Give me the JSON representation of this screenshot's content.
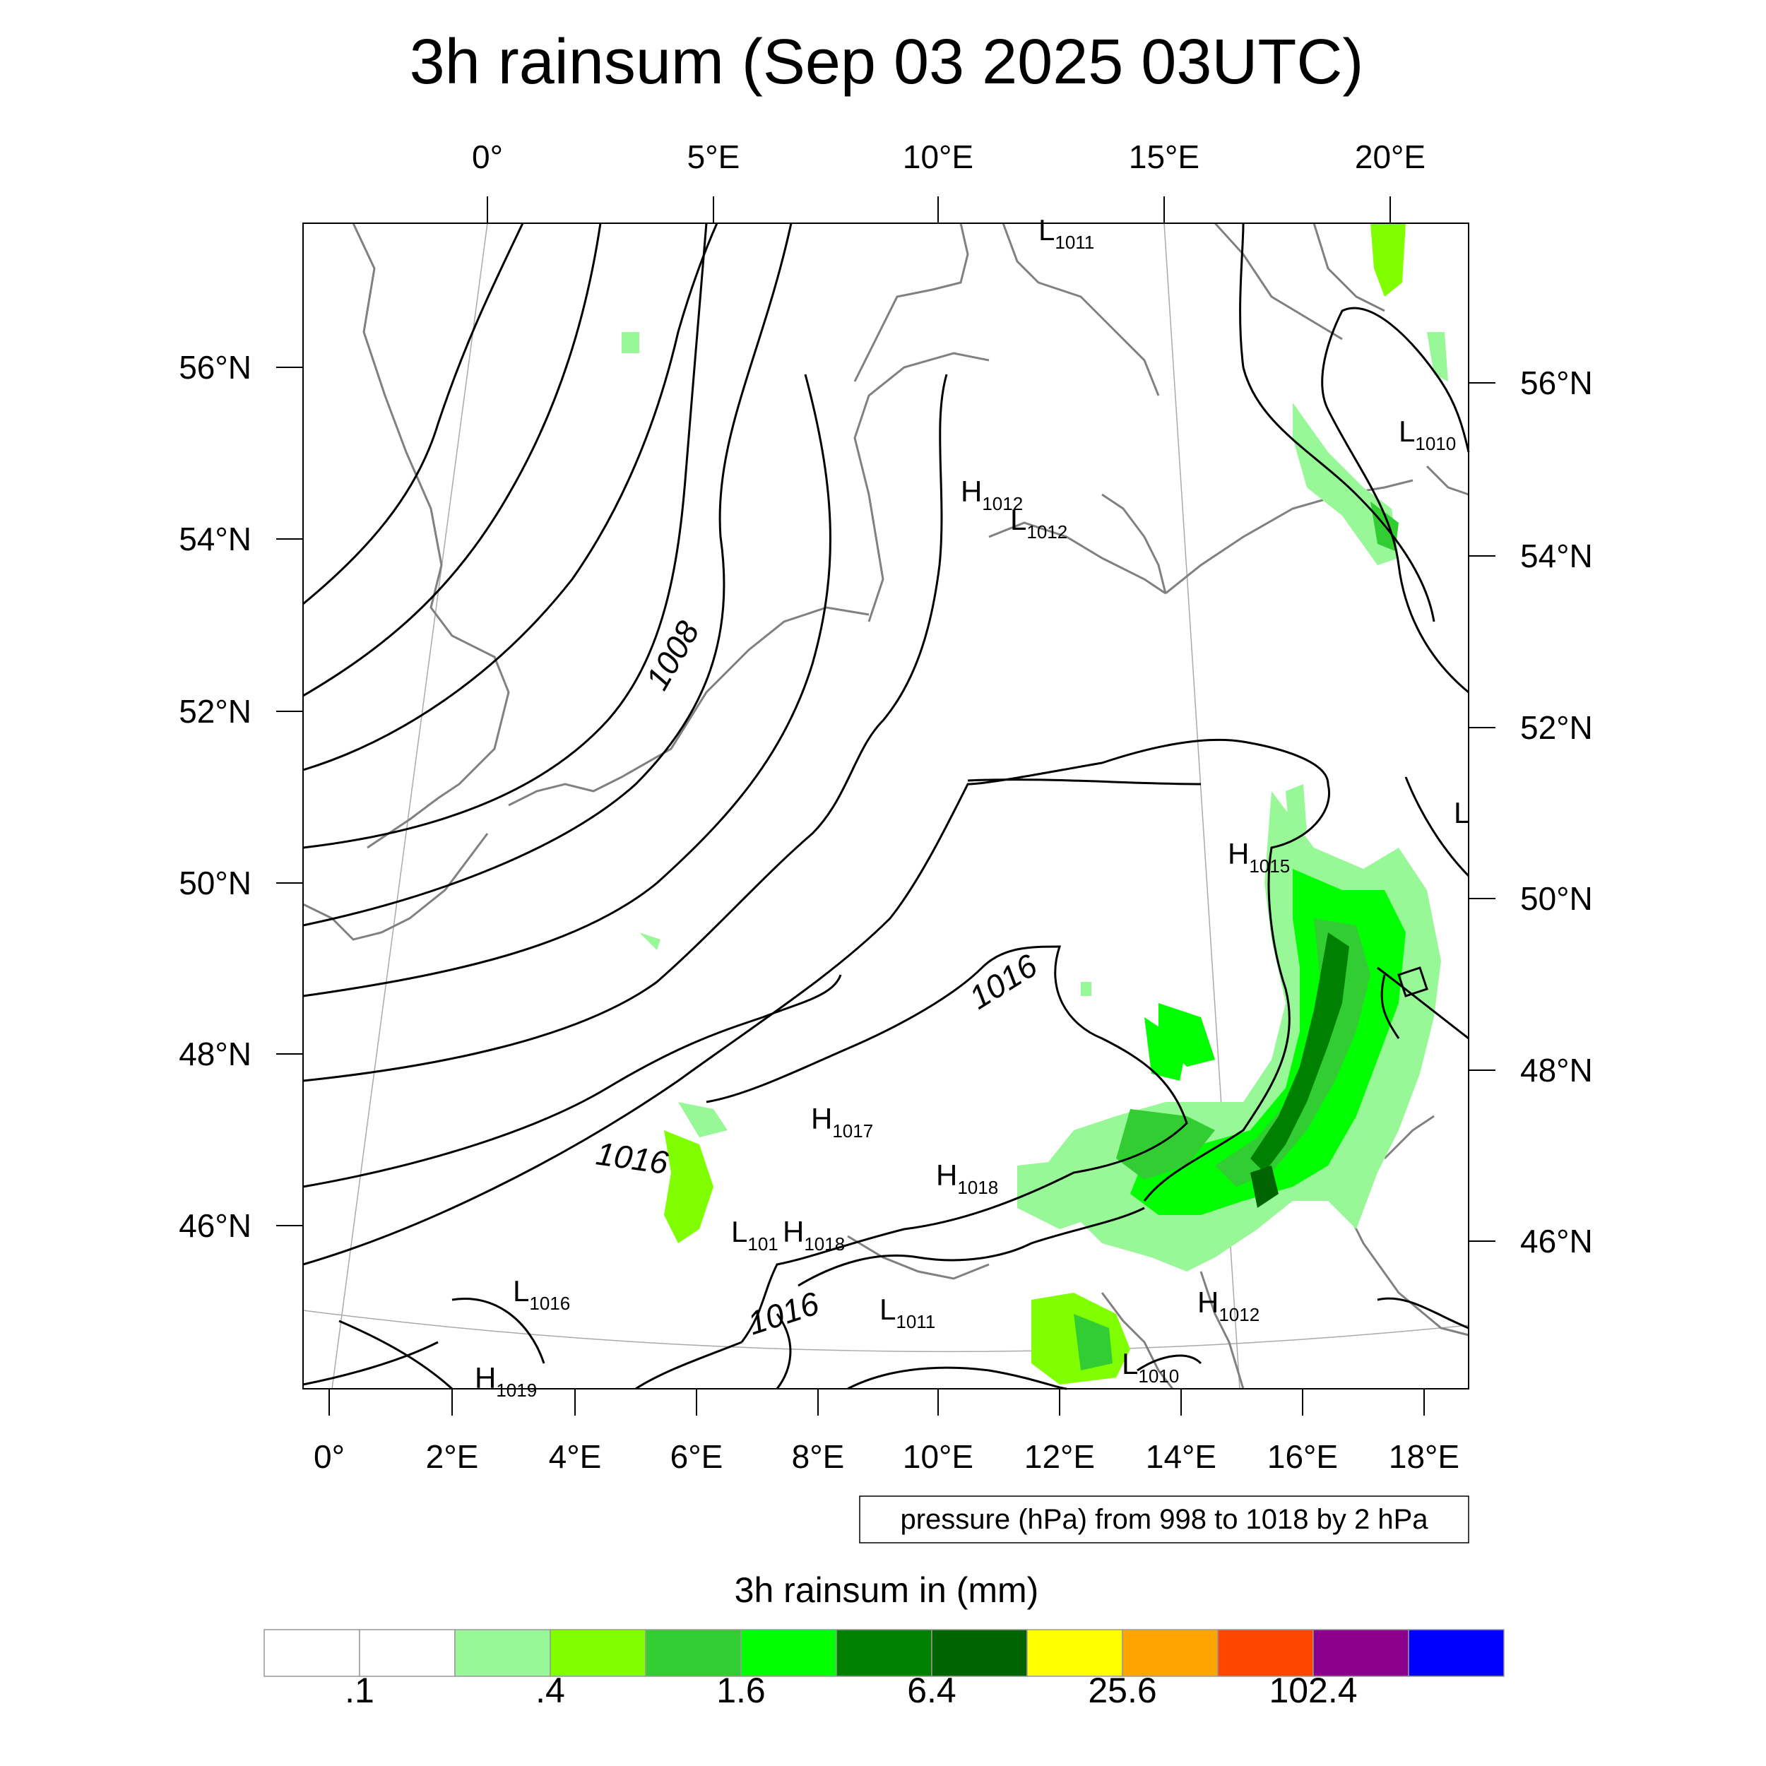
{
  "title": "3h rainsum (Sep 03 2025 03UTC)",
  "top_lon_ticks": [
    "0°",
    "5°E",
    "10°E",
    "15°E",
    "20°E"
  ],
  "bottom_lon_ticks": [
    "0°",
    "2°E",
    "4°E",
    "6°E",
    "8°E",
    "10°E",
    "12°E",
    "14°E",
    "16°E",
    "18°E"
  ],
  "left_lat_ticks": [
    "56°N",
    "54°N",
    "52°N",
    "50°N",
    "48°N",
    "46°N"
  ],
  "right_lat_ticks": [
    "56°N",
    "54°N",
    "52°N",
    "50°N",
    "48°N",
    "46°N"
  ],
  "pressure_labels": {
    "l1011_top": {
      "letter": "L",
      "value": "1011"
    },
    "l1010_ne": {
      "letter": "L",
      "value": "1010"
    },
    "h1012_dk": {
      "letter": "H",
      "value": "1012"
    },
    "l1012_dk": {
      "letter": "L",
      "value": "1012"
    },
    "l_edge": {
      "letter": "L",
      "value": ""
    },
    "h1015": {
      "letter": "H",
      "value": "1015"
    },
    "h1017": {
      "letter": "H",
      "value": "1017"
    },
    "h1018_a": {
      "letter": "H",
      "value": "1018"
    },
    "l101": {
      "letter": "L",
      "value": "101"
    },
    "h1018_b": {
      "letter": "H",
      "value": "1018"
    },
    "l1016": {
      "letter": "L",
      "value": "1016"
    },
    "l1011_alps": {
      "letter": "L",
      "value": "1011"
    },
    "h1012_se": {
      "letter": "H",
      "value": "1012"
    },
    "l1010_se": {
      "letter": "L",
      "value": "1010"
    },
    "h1019": {
      "letter": "H",
      "value": "1019"
    }
  },
  "isobar_labels": [
    "1008",
    "1016",
    "1016",
    "1016"
  ],
  "info_text": "pressure (hPa) from 998 to 1018 by 2 hPa",
  "colorbar": {
    "title": "3h rainsum in (mm)",
    "colors": [
      "#ffffff",
      "#ffffff",
      "#98f898",
      "#80ff00",
      "#32cd32",
      "#00ff00",
      "#008000",
      "#006400",
      "#ffff00",
      "#ffa500",
      "#ff4500",
      "#8b008b",
      "#0000ff"
    ],
    "labels": [
      ".1",
      ".4",
      "1.6",
      "6.4",
      "25.6",
      "102.4"
    ]
  }
}
